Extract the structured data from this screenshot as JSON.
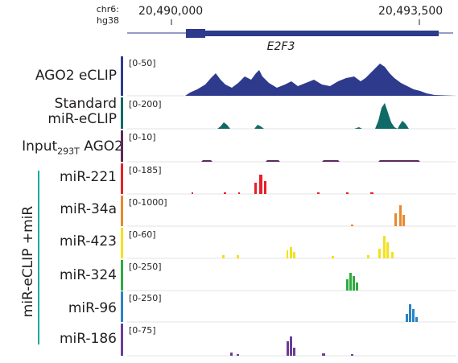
{
  "genome": {
    "chrom": "chr6:",
    "assembly": "hg38"
  },
  "ruler": {
    "left_label": "20,490,000",
    "right_label": "20,493,500"
  },
  "gene": {
    "name": "E2F3"
  },
  "group_label": "miR-eCLIP +miR",
  "tracks": [
    {
      "id": "ago2",
      "label": "AGO2 eCLIP",
      "range": "[0-50]",
      "color": "#2e3a8c"
    },
    {
      "id": "std",
      "label_line1": "Standard",
      "label_line2": "miR-eCLIP",
      "range": "[0-200]",
      "color": "#106a66"
    },
    {
      "id": "input",
      "label_main": "Input",
      "label_sub": "293T",
      "label_tail": " AGO2",
      "range": "[0-10]",
      "color": "#5b2a5e"
    },
    {
      "id": "mir221",
      "label": "miR-221",
      "range": "[0-185]",
      "color": "#e8202a"
    },
    {
      "id": "mir34a",
      "label": "miR-34a",
      "range": "[0-1000]",
      "color": "#e8892e"
    },
    {
      "id": "mir423",
      "label": "miR-423",
      "range": "[0-60]",
      "color": "#f2e21c"
    },
    {
      "id": "mir324",
      "label": "miR-324",
      "range": "[0-250]",
      "color": "#2eaa3f"
    },
    {
      "id": "mir96",
      "label": "miR-96",
      "range": "[0-250]",
      "color": "#2a84c6"
    },
    {
      "id": "mir186",
      "label": "miR-186",
      "range": "[0-75]",
      "color": "#6a3e98"
    }
  ]
}
